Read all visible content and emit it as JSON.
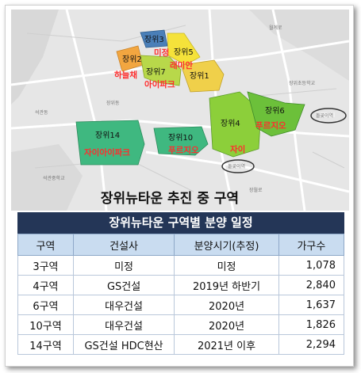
{
  "map": {
    "title": "장위뉴타운 추진 중 구역",
    "zones": [
      {
        "label": "장위3",
        "brand": "미정"
      },
      {
        "label": "장위2",
        "brand": "하늘채"
      },
      {
        "label": "장위5",
        "brand": "래미안"
      },
      {
        "label": "장위7",
        "brand": "아이파크"
      },
      {
        "label": "장위1",
        "brand": ""
      },
      {
        "label": "장위4",
        "brand": "자이"
      },
      {
        "label": "장위6",
        "brand": "푸르지오"
      },
      {
        "label": "장위14",
        "brand": "자이아이파크"
      },
      {
        "label": "장위10",
        "brand": "푸르지오"
      }
    ],
    "colors": {
      "zone3": "#4a7fb8",
      "zone2": "#f2a640",
      "zone5": "#f5e23a",
      "zone7": "#b8d84a",
      "zone1": "#f0d04a",
      "zone4": "#8ccf3a",
      "zone6": "#6cc03a",
      "zone14": "#3fb880",
      "zone10": "#3fb880",
      "brand_text": "#ff2d2d"
    }
  },
  "table": {
    "title": "장위뉴타운 구역별 분양 일정",
    "headers": [
      "구역",
      "건설사",
      "분양시기(추정)",
      "가구수"
    ],
    "rows": [
      [
        "3구역",
        "미정",
        "미정",
        "1,078"
      ],
      [
        "4구역",
        "GS건설",
        "2019년 하반기",
        "2,840"
      ],
      [
        "6구역",
        "대우건설",
        "2020년",
        "1,637"
      ],
      [
        "10구역",
        "대우건설",
        "2020년",
        "1,826"
      ],
      [
        "14구역",
        "GS건설 HDC현산",
        "2021년 이후",
        "2,294"
      ]
    ],
    "colors": {
      "title_bg": "#243657",
      "header_bg": "#c9dcf0"
    }
  }
}
